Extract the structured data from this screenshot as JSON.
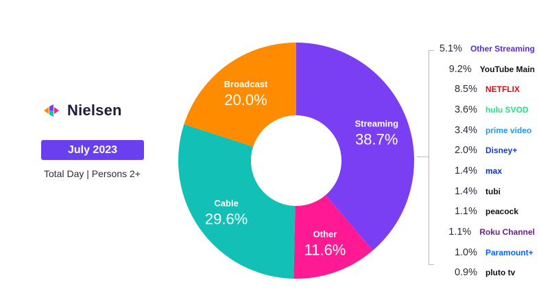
{
  "brand": {
    "name": "Nielsen"
  },
  "header": {
    "period": "July 2023",
    "subtitle": "Total Day | Persons 2+"
  },
  "chart_data": {
    "type": "pie",
    "donut": true,
    "categories": [
      "Streaming",
      "Other",
      "Cable",
      "Broadcast"
    ],
    "values": [
      38.7,
      11.6,
      29.6,
      20.0
    ],
    "value_labels": [
      "38.7%",
      "11.6%",
      "29.6%",
      "20.0%"
    ],
    "colors": [
      "#7a3ff2",
      "#ff1a94",
      "#12c0b6",
      "#ff8c00"
    ],
    "streaming_breakdown": [
      {
        "platform": "Other Streaming",
        "value": 5.1,
        "label": "5.1%"
      },
      {
        "platform": "YouTube Main",
        "value": 9.2,
        "label": "9.2%"
      },
      {
        "platform": "NETFLIX",
        "value": 8.5,
        "label": "8.5%"
      },
      {
        "platform": "hulu SVOD",
        "value": 3.6,
        "label": "3.6%"
      },
      {
        "platform": "prime video",
        "value": 3.4,
        "label": "3.4%"
      },
      {
        "platform": "Disney+",
        "value": 2.0,
        "label": "2.0%"
      },
      {
        "platform": "max",
        "value": 1.4,
        "label": "1.4%"
      },
      {
        "platform": "tubi",
        "value": 1.4,
        "label": "1.4%"
      },
      {
        "platform": "peacock",
        "value": 1.1,
        "label": "1.1%"
      },
      {
        "platform": "Roku Channel",
        "value": 1.1,
        "label": "1.1%"
      },
      {
        "platform": "Paramount+",
        "value": 1.0,
        "label": "1.0%"
      },
      {
        "platform": "pluto tv",
        "value": 0.9,
        "label": "0.9%"
      }
    ]
  },
  "platform_colors": [
    "#5b2bd6",
    "#111111",
    "#e50914",
    "#1ce783",
    "#1a98ff",
    "#113ccf",
    "#002be7",
    "#111111",
    "#111111",
    "#6c1d8c",
    "#0064ff",
    "#111111"
  ]
}
